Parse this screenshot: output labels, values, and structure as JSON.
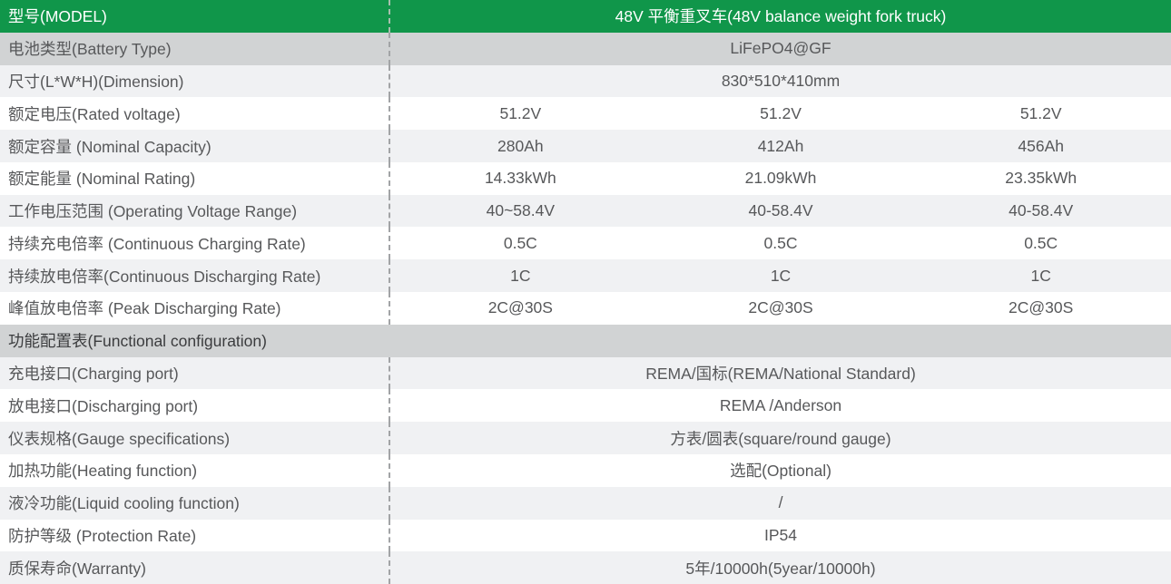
{
  "table": {
    "header": {
      "label": "型号(MODEL)",
      "value": "48V 平衡重叉车(48V balance weight fork truck)"
    },
    "rows": [
      {
        "label": "电池类型(Battery Type)",
        "values": [
          "LiFePO4@GF"
        ]
      },
      {
        "label": "尺寸(L*W*H)(Dimension)",
        "values": [
          "830*510*410mm"
        ]
      },
      {
        "label": "额定电压(Rated voltage)",
        "values": [
          "51.2V",
          "51.2V",
          "51.2V"
        ]
      },
      {
        "label": "额定容量 (Nominal Capacity)",
        "values": [
          "280Ah",
          "412Ah",
          "456Ah"
        ]
      },
      {
        "label": "额定能量 (Nominal Rating)",
        "values": [
          "14.33kWh",
          "21.09kWh",
          "23.35kWh"
        ]
      },
      {
        "label": "工作电压范围 (Operating Voltage Range)",
        "values": [
          "40~58.4V",
          "40-58.4V",
          "40-58.4V"
        ]
      },
      {
        "label": "持续充电倍率 (Continuous Charging Rate)",
        "values": [
          "0.5C",
          "0.5C",
          "0.5C"
        ]
      },
      {
        "label": "持续放电倍率(Continuous Discharging Rate)",
        "values": [
          "1C",
          "1C",
          "1C"
        ]
      },
      {
        "label": "峰值放电倍率 (Peak Discharging Rate)",
        "values": [
          "2C@30S",
          "2C@30S",
          "2C@30S"
        ]
      },
      {
        "label": "功能配置表(Functional configuration)",
        "values": []
      },
      {
        "label": "充电接口(Charging port)",
        "values": [
          "REMA/国标(REMA/National Standard)"
        ]
      },
      {
        "label": "放电接口(Discharging port)",
        "values": [
          "REMA /Anderson"
        ]
      },
      {
        "label": "仪表规格(Gauge specifications)",
        "values": [
          "方表/圆表(square/round gauge)"
        ]
      },
      {
        "label": "加热功能(Heating function)",
        "values": [
          "选配(Optional)"
        ]
      },
      {
        "label": "液冷功能(Liquid cooling function)",
        "values": [
          "/"
        ]
      },
      {
        "label": "防护等级 (Protection Rate)",
        "values": [
          "IP54"
        ]
      },
      {
        "label": "质保寿命(Warranty)",
        "values": [
          "5年/10000h(5year/10000h)"
        ]
      }
    ],
    "colors": {
      "header_green": "#10964a",
      "row_dark_gray": "#d1d3d4",
      "row_light_gray": "#f0f1f3",
      "row_white": "#ffffff",
      "label_text": "#57585a",
      "section_text": "#3b3c3e",
      "header_text": "#ffffff",
      "divider_dash": "#a2a4a6"
    }
  }
}
